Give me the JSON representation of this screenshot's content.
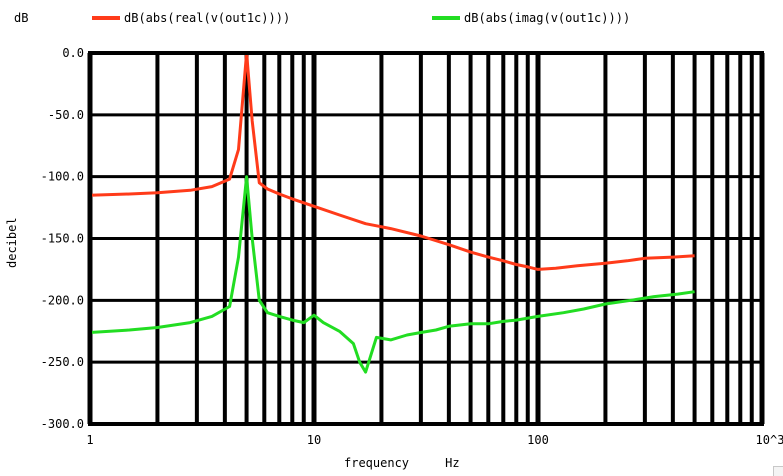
{
  "chart_data": {
    "type": "line",
    "x_scale": "log",
    "y_unit_label": "dB",
    "ylabel": "decibel",
    "xlabel": "frequency     Hz",
    "xlim": [
      1,
      1000
    ],
    "ylim": [
      -300,
      0
    ],
    "x_ticks": [
      {
        "value": 1,
        "label": "1"
      },
      {
        "value": 10,
        "label": "10"
      },
      {
        "value": 100,
        "label": "100"
      },
      {
        "value": 1000,
        "label": "10^3"
      }
    ],
    "y_ticks": [
      {
        "value": 0,
        "label": "0.0"
      },
      {
        "value": -50,
        "label": "-50.0"
      },
      {
        "value": -100,
        "label": "-100.0"
      },
      {
        "value": -150,
        "label": "-150.0"
      },
      {
        "value": -200,
        "label": "-200.0"
      },
      {
        "value": -250,
        "label": "-250.0"
      },
      {
        "value": -300,
        "label": "-300.0"
      }
    ],
    "grid": true,
    "legend_position": "top",
    "series": [
      {
        "name": "dB(abs(real(v(out1c))))",
        "color": "#ff3b1a",
        "x": [
          1,
          1.5,
          2,
          2.8,
          3.5,
          4.2,
          4.6,
          5,
          5.3,
          5.7,
          6.2,
          7,
          8,
          10,
          13,
          17,
          22,
          30,
          40,
          50,
          60,
          70,
          80,
          90,
          100,
          120,
          150,
          200,
          250,
          300,
          400,
          500
        ],
        "y": [
          -115,
          -114,
          -113,
          -111,
          -108,
          -102,
          -78,
          0,
          -55,
          -105,
          -110,
          -114,
          -118,
          -124,
          -131,
          -138,
          -142,
          -148,
          -155,
          -161,
          -165,
          -168,
          -171,
          -173,
          -175,
          -174,
          -172,
          -170,
          -168,
          -166,
          -165,
          -164
        ]
      },
      {
        "name": "dB(abs(imag(v(out1c))))",
        "color": "#22dd22",
        "x": [
          1,
          1.5,
          2,
          2.8,
          3.5,
          4.2,
          4.6,
          5,
          5.3,
          5.7,
          6.2,
          7,
          8,
          9,
          10,
          11,
          13,
          15,
          16,
          17,
          19,
          22,
          26,
          30,
          35,
          40,
          50,
          60,
          70,
          80,
          100,
          130,
          160,
          200,
          260,
          330,
          420,
          500
        ],
        "y": [
          -226,
          -224,
          -222,
          -218,
          -213,
          -205,
          -165,
          -100,
          -150,
          -200,
          -210,
          -213,
          -216,
          -218,
          -212,
          -218,
          -225,
          -235,
          -250,
          -258,
          -230,
          -232,
          -228,
          -226,
          -224,
          -221,
          -219,
          -219,
          -217,
          -216,
          -213,
          -210,
          -207,
          -203,
          -200,
          -197,
          -195,
          -193
        ]
      }
    ]
  }
}
